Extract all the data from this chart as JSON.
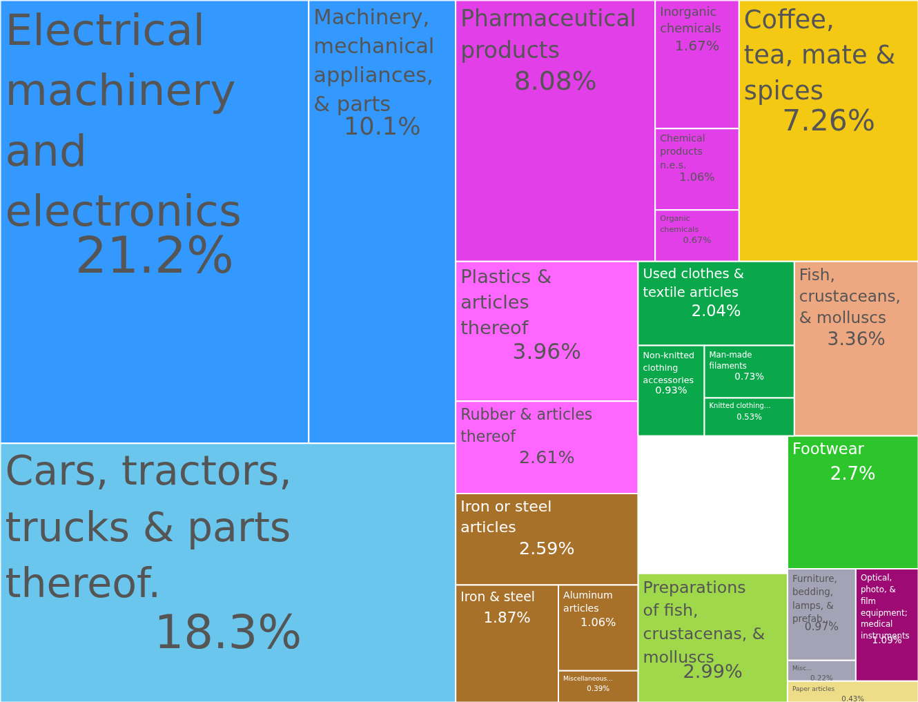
{
  "chart_data": {
    "type": "other",
    "categories": [
      "Electrical machinery and electronics",
      "Machinery, mechanical appliances, & parts",
      "Cars, tractors, trucks & parts thereof.",
      "Pharmaceutical products",
      "Inorganic chemicals",
      "Chemical products n.e.s.",
      "Organic chemicals",
      "Coffee, tea, mate & spices",
      "Plastics & articles thereof",
      "Rubber & articles thereof",
      "Fish, crustaceans, & molluscs",
      "Preparations of fish, crustacenas, & molluscs",
      "Iron or steel articles",
      "Aluminum articles",
      "Iron & steel",
      "Miscellaneous...",
      "Footwear",
      "Furniture, bedding, lamps, & prefab...",
      "Misc...",
      "Used clothes & textile articles",
      "Non-knitted clothing accessories",
      "Man-made filaments",
      "Knitted clothing...",
      "Optical, photo, & film equipment; medical instruments",
      "Paper articles"
    ],
    "values": [
      21.2,
      10.1,
      18.3,
      8.08,
      1.67,
      1.06,
      0.67,
      7.26,
      3.96,
      2.61,
      3.36,
      2.99,
      2.59,
      1.06,
      1.87,
      0.39,
      2.7,
      0.97,
      0.22,
      2.04,
      0.93,
      0.73,
      0.53,
      1.09,
      0.43
    ],
    "value_labels": [
      "21.2%",
      "10.1%",
      "18.3%",
      "8.08%",
      "1.67%",
      "1.06%",
      "0.67%",
      "7.26%",
      "3.96%",
      "2.61%",
      "3.36%",
      "2.99%",
      "2.59%",
      "1.06%",
      "1.87%",
      "0.39%",
      "2.7%",
      "0.97%",
      "0.22%",
      "2.04%",
      "0.93%",
      "0.73%",
      "0.53%",
      "1.09%",
      "0.43%"
    ],
    "colors": [
      "#3399ff",
      "#3399ff",
      "#6ac6ec",
      "#e23fe8",
      "#e23fe8",
      "#e23fe8",
      "#e23fe8",
      "#f4c914",
      "#ff66ff",
      "#ff66ff",
      "#eda882",
      "#9fd84a",
      "#a8712a",
      "#a8712a",
      "#a8712a",
      "#a8712a",
      "#2cc62c",
      "#a3a3b5",
      "#a3a3b5",
      "#0aa84a",
      "#0aa84a",
      "#0aa84a",
      "#0aa84a",
      "#9e0a73",
      "#eedd88"
    ]
  }
}
